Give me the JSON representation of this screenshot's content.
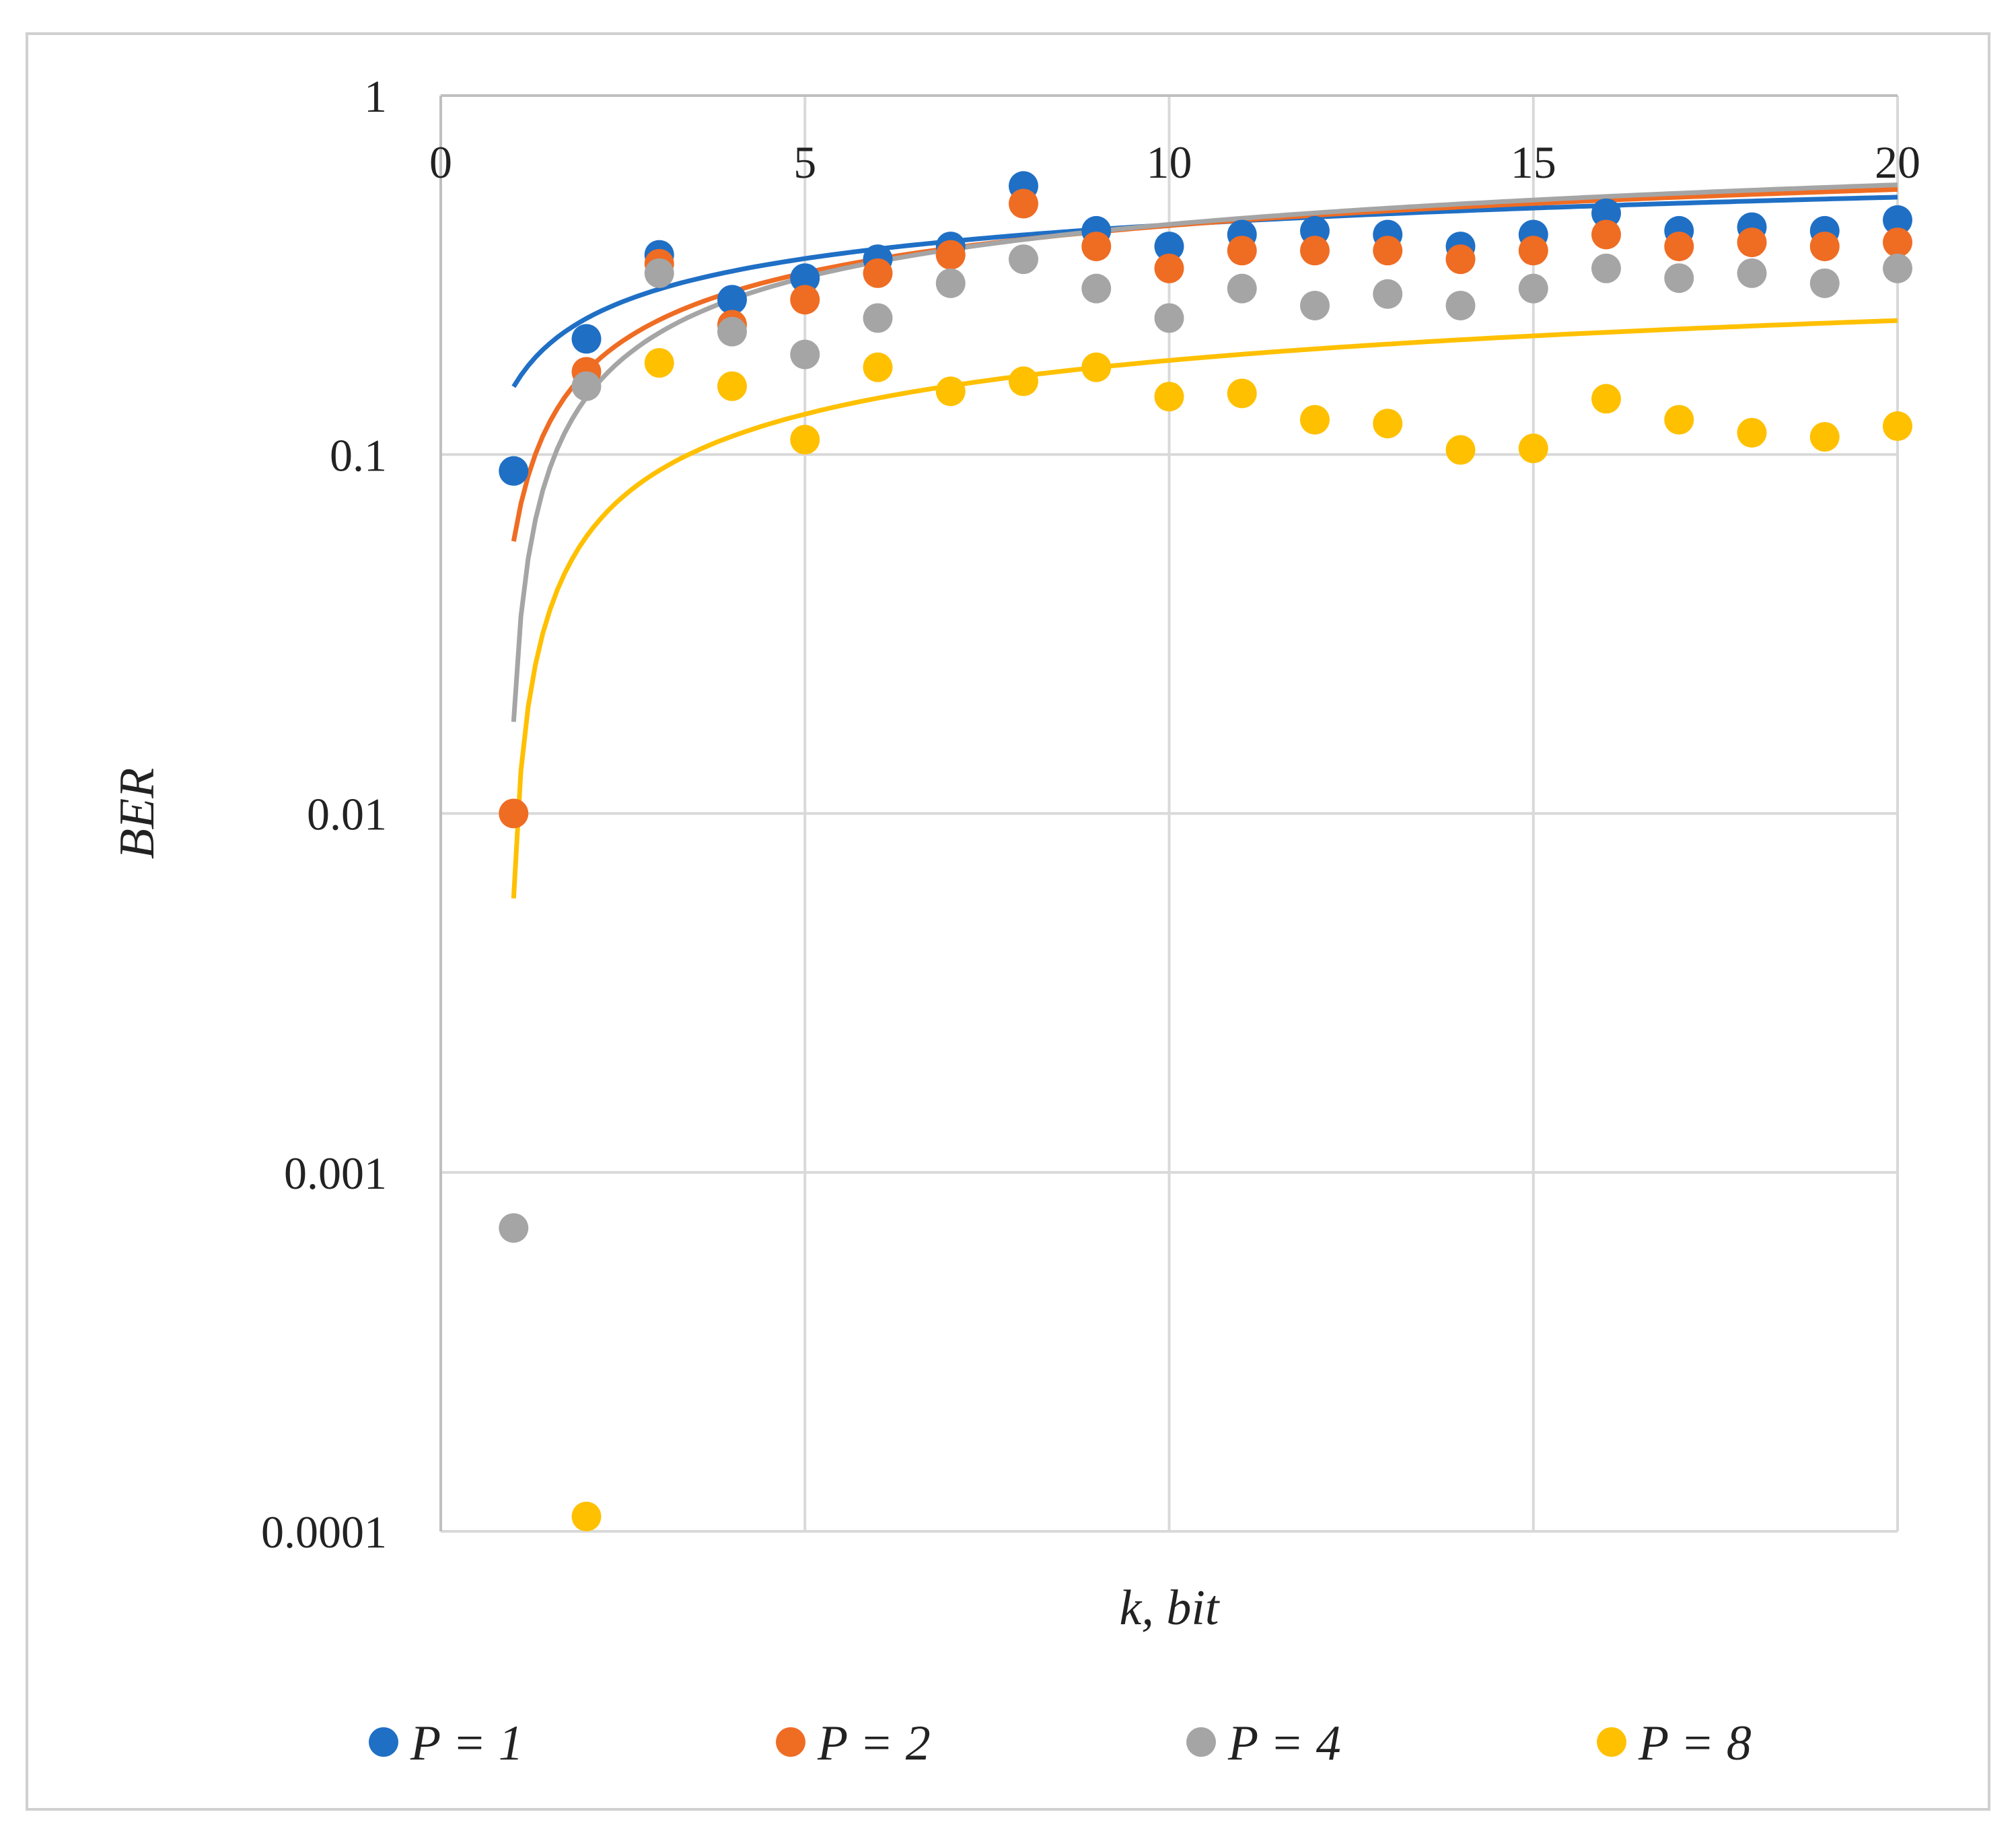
{
  "chart_data": {
    "type": "scatter",
    "title": "",
    "xlabel": "k, bit",
    "ylabel": "BER",
    "xlim": [
      0,
      20
    ],
    "ylim": [
      0.0001,
      1
    ],
    "yscale": "log",
    "x_axis_position": "top",
    "grid": true,
    "legend_position": "bottom",
    "x_ticks": [
      0,
      5,
      10,
      15,
      20
    ],
    "x_tick_labels": [
      "0",
      "5",
      "10",
      "15",
      "20"
    ],
    "y_ticks": [
      1,
      0.1,
      0.01,
      0.001,
      0.0001
    ],
    "y_tick_labels": [
      "1",
      "0.1",
      "0.01",
      "0.001",
      "0.0001"
    ],
    "series": [
      {
        "name": "P = 1",
        "color": "#1f6fc5",
        "x": [
          1,
          2,
          3,
          4,
          5,
          6,
          7,
          8,
          9,
          10,
          11,
          12,
          13,
          14,
          15,
          16,
          17,
          18,
          19,
          20
        ],
        "values": [
          0.09,
          0.21,
          0.36,
          0.27,
          0.31,
          0.35,
          0.38,
          0.56,
          0.42,
          0.38,
          0.41,
          0.42,
          0.41,
          0.38,
          0.41,
          0.47,
          0.42,
          0.43,
          0.42,
          0.45
        ],
        "trendline": {
          "type": "logarithmic",
          "a": 0.1224,
          "b": 0.1545
        }
      },
      {
        "name": "P = 2",
        "color": "#ef6c23",
        "x": [
          1,
          2,
          3,
          4,
          5,
          6,
          7,
          8,
          9,
          10,
          11,
          12,
          13,
          14,
          15,
          16,
          17,
          18,
          19,
          20
        ],
        "values": [
          0.01,
          0.17,
          0.34,
          0.23,
          0.27,
          0.32,
          0.36,
          0.5,
          0.38,
          0.33,
          0.37,
          0.37,
          0.37,
          0.35,
          0.37,
          0.41,
          0.38,
          0.39,
          0.38,
          0.39
        ],
        "trendline": {
          "type": "logarithmic",
          "a": 0.1637,
          "b": 0.0573
        }
      },
      {
        "name": "P = 4",
        "color": "#a5a5a5",
        "x": [
          1,
          2,
          3,
          4,
          5,
          6,
          7,
          8,
          9,
          10,
          11,
          12,
          13,
          14,
          15,
          16,
          17,
          18,
          19,
          20
        ],
        "values": [
          0.0007,
          0.155,
          0.32,
          0.22,
          0.19,
          0.24,
          0.3,
          0.35,
          0.29,
          0.24,
          0.29,
          0.26,
          0.28,
          0.26,
          0.29,
          0.33,
          0.31,
          0.32,
          0.3,
          0.33
        ],
        "trendline": {
          "type": "logarithmic",
          "a": 0.1823,
          "b": 0.018
        }
      },
      {
        "name": "P = 8",
        "color": "#ffc000",
        "x": [
          1,
          2,
          3,
          4,
          5,
          6,
          7,
          8,
          9,
          10,
          11,
          12,
          13,
          14,
          15,
          16,
          17,
          18,
          19,
          20
        ],
        "values": [
          null,
          0.00011,
          0.18,
          0.155,
          0.11,
          0.175,
          0.15,
          0.16,
          0.175,
          0.145,
          0.148,
          0.125,
          0.122,
          0.103,
          0.104,
          0.143,
          0.125,
          0.115,
          0.112,
          0.12
        ],
        "trendline": {
          "type": "logarithmic",
          "a": 0.0769,
          "b": 0.0058
        }
      }
    ]
  }
}
